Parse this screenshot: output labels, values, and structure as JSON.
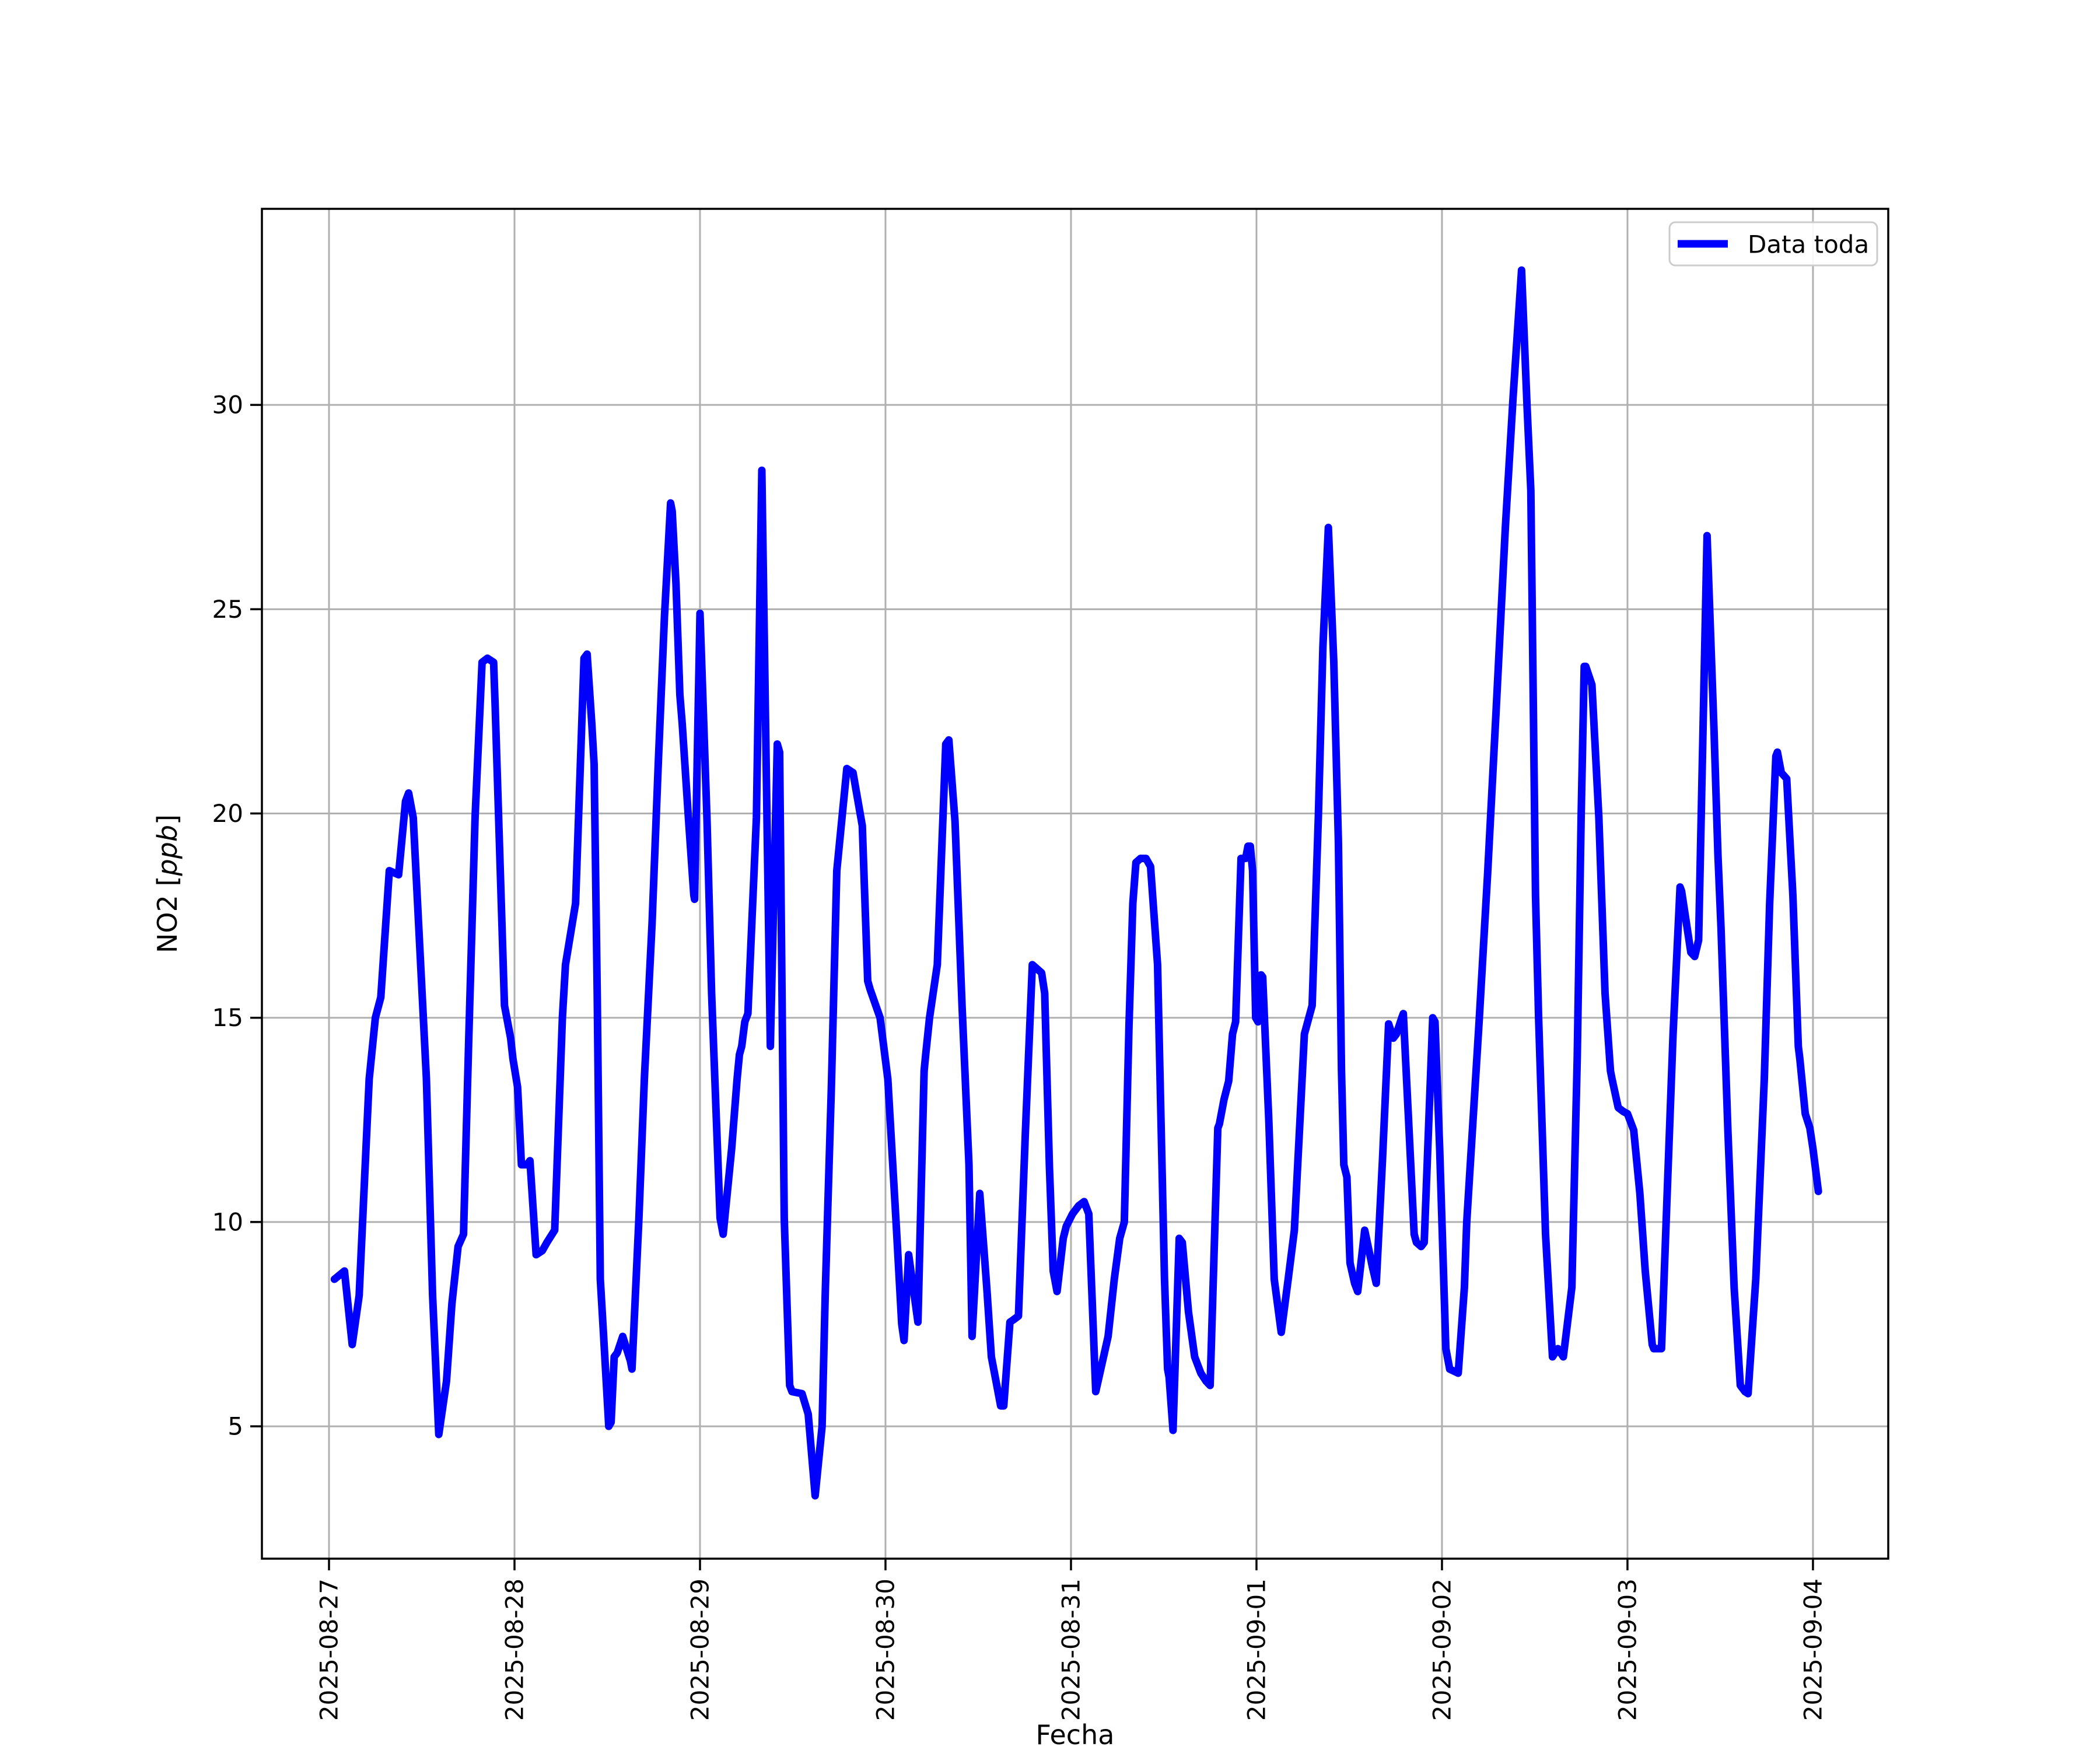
{
  "chart_data": {
    "type": "line",
    "title": "",
    "xlabel": "Fecha",
    "ylabel": "NO2 [ppb]",
    "ylabel_prefix": "NO2 [",
    "ylabel_unit": "ppb",
    "ylabel_suffix": "]",
    "grid": true,
    "legend_position": "upper right",
    "x_unit": "hours since 2025-08-27 00:00",
    "xlim_hours": [
      -8.68,
      201.74
    ],
    "ylim": [
      1.76,
      34.8
    ],
    "y_ticks": [
      5,
      10,
      15,
      20,
      25,
      30
    ],
    "x_tick_hours": [
      0,
      24,
      48,
      72,
      96,
      120,
      144,
      168,
      192
    ],
    "x_tick_labels": [
      "2025-08-27",
      "2025-08-28",
      "2025-08-29",
      "2025-08-30",
      "2025-08-31",
      "2025-09-01",
      "2025-09-02",
      "2025-09-03",
      "2025-09-04"
    ],
    "series": [
      {
        "name": "Data toda",
        "color": "#0000ff",
        "points": [
          [
            0.7,
            8.6
          ],
          [
            2.0,
            8.8
          ],
          [
            3.0,
            7.0
          ],
          [
            3.9,
            8.2
          ],
          [
            5.2,
            13.5
          ],
          [
            6.0,
            15.0
          ],
          [
            6.7,
            15.5
          ],
          [
            7.8,
            18.6
          ],
          [
            9.0,
            18.5
          ],
          [
            9.9,
            20.3
          ],
          [
            10.3,
            20.5
          ],
          [
            10.9,
            19.9
          ],
          [
            12.6,
            13.5
          ],
          [
            13.4,
            8.2
          ],
          [
            14.2,
            4.8
          ],
          [
            15.2,
            6.1
          ],
          [
            15.9,
            8.0
          ],
          [
            16.7,
            9.4
          ],
          [
            17.4,
            9.7
          ],
          [
            18.1,
            14.6
          ],
          [
            18.9,
            19.9
          ],
          [
            19.8,
            23.7
          ],
          [
            20.5,
            23.8
          ],
          [
            21.3,
            23.7
          ],
          [
            21.5,
            22.6
          ],
          [
            22.7,
            15.3
          ],
          [
            23.5,
            14.5
          ],
          [
            23.8,
            14.0
          ],
          [
            24.4,
            13.3
          ],
          [
            24.9,
            11.4
          ],
          [
            25.6,
            11.4
          ],
          [
            26.0,
            11.5
          ],
          [
            26.8,
            9.2
          ],
          [
            27.6,
            9.3
          ],
          [
            28.2,
            9.5
          ],
          [
            29.2,
            9.8
          ],
          [
            30.2,
            15.0
          ],
          [
            30.6,
            16.3
          ],
          [
            31.9,
            17.8
          ],
          [
            33.0,
            23.8
          ],
          [
            33.4,
            23.9
          ],
          [
            34.0,
            22.2
          ],
          [
            34.3,
            21.2
          ],
          [
            34.7,
            15.6
          ],
          [
            35.1,
            8.6
          ],
          [
            35.5,
            7.3
          ],
          [
            36.2,
            5.0
          ],
          [
            36.5,
            5.1
          ],
          [
            36.9,
            6.7
          ],
          [
            37.3,
            6.8
          ],
          [
            38.0,
            7.2
          ],
          [
            39.0,
            6.6
          ],
          [
            39.2,
            6.4
          ],
          [
            40.1,
            10.1
          ],
          [
            40.8,
            13.5
          ],
          [
            41.8,
            17.3
          ],
          [
            42.6,
            21.2
          ],
          [
            43.4,
            24.8
          ],
          [
            44.2,
            27.6
          ],
          [
            44.4,
            27.4
          ],
          [
            44.9,
            25.6
          ],
          [
            45.4,
            22.9
          ],
          [
            45.7,
            22.2
          ],
          [
            46.5,
            19.9
          ],
          [
            47.2,
            18.0
          ],
          [
            47.3,
            17.9
          ],
          [
            48.0,
            24.9
          ],
          [
            48.9,
            19.9
          ],
          [
            49.5,
            15.6
          ],
          [
            50.6,
            10.1
          ],
          [
            51.0,
            9.7
          ],
          [
            52.1,
            11.8
          ],
          [
            52.8,
            13.5
          ],
          [
            53.1,
            14.1
          ],
          [
            53.4,
            14.3
          ],
          [
            53.8,
            14.9
          ],
          [
            54.2,
            15.1
          ],
          [
            55.3,
            19.9
          ],
          [
            56.0,
            28.4
          ],
          [
            57.1,
            14.3
          ],
          [
            58.0,
            21.7
          ],
          [
            58.3,
            21.5
          ],
          [
            58.9,
            10.1
          ],
          [
            59.6,
            6.0
          ],
          [
            59.9,
            5.85
          ],
          [
            61.2,
            5.8
          ],
          [
            62.0,
            5.3
          ],
          [
            62.9,
            3.3
          ],
          [
            63.8,
            5.0
          ],
          [
            64.2,
            8.2
          ],
          [
            65.0,
            13.3
          ],
          [
            65.7,
            18.6
          ],
          [
            67.0,
            21.1
          ],
          [
            67.8,
            21.0
          ],
          [
            69.0,
            19.7
          ],
          [
            69.7,
            15.9
          ],
          [
            70.0,
            15.7
          ],
          [
            71.3,
            15.0
          ],
          [
            72.3,
            13.5
          ],
          [
            73.4,
            9.9
          ],
          [
            74.1,
            7.5
          ],
          [
            74.4,
            7.1
          ],
          [
            75.0,
            9.2
          ],
          [
            76.2,
            7.55
          ],
          [
            77.0,
            13.7
          ],
          [
            77.2,
            14.1
          ],
          [
            77.7,
            15.0
          ],
          [
            78.7,
            16.3
          ],
          [
            79.8,
            21.7
          ],
          [
            80.2,
            21.8
          ],
          [
            81.0,
            19.8
          ],
          [
            81.9,
            15.3
          ],
          [
            82.8,
            11.4
          ],
          [
            83.2,
            7.2
          ],
          [
            84.2,
            10.7
          ],
          [
            85.1,
            8.4
          ],
          [
            85.7,
            6.7
          ],
          [
            86.3,
            6.1
          ],
          [
            86.9,
            5.5
          ],
          [
            87.3,
            5.5
          ],
          [
            88.1,
            7.55
          ],
          [
            88.5,
            7.6
          ],
          [
            89.2,
            7.7
          ],
          [
            90.1,
            12.2
          ],
          [
            91.0,
            16.3
          ],
          [
            92.2,
            16.1
          ],
          [
            92.6,
            15.6
          ],
          [
            93.2,
            11.4
          ],
          [
            93.7,
            8.8
          ],
          [
            94.2,
            8.3
          ],
          [
            95.0,
            9.6
          ],
          [
            95.4,
            9.9
          ],
          [
            96.2,
            10.2
          ],
          [
            97.0,
            10.4
          ],
          [
            97.7,
            10.5
          ],
          [
            98.3,
            10.2
          ],
          [
            99.2,
            5.85
          ],
          [
            100.8,
            7.2
          ],
          [
            101.6,
            8.6
          ],
          [
            102.3,
            9.6
          ],
          [
            102.9,
            10.0
          ],
          [
            103.5,
            14.8
          ],
          [
            104.0,
            17.8
          ],
          [
            104.4,
            18.8
          ],
          [
            105.0,
            18.9
          ],
          [
            105.7,
            18.9
          ],
          [
            106.3,
            18.7
          ],
          [
            107.2,
            16.3
          ],
          [
            107.4,
            14.6
          ],
          [
            108.1,
            8.6
          ],
          [
            108.5,
            6.4
          ],
          [
            108.7,
            6.2
          ],
          [
            109.2,
            4.9
          ],
          [
            110.0,
            9.6
          ],
          [
            110.4,
            9.5
          ],
          [
            111.2,
            7.8
          ],
          [
            112.0,
            6.7
          ],
          [
            112.8,
            6.3
          ],
          [
            113.5,
            6.1
          ],
          [
            114.0,
            6.0
          ],
          [
            115.0,
            12.3
          ],
          [
            115.2,
            12.4
          ],
          [
            115.8,
            13.0
          ],
          [
            116.4,
            13.45
          ],
          [
            116.9,
            14.6
          ],
          [
            117.3,
            14.9
          ],
          [
            118.0,
            18.9
          ],
          [
            118.6,
            18.9
          ],
          [
            118.9,
            19.2
          ],
          [
            119.2,
            19.2
          ],
          [
            119.5,
            18.6
          ],
          [
            119.9,
            15.0
          ],
          [
            120.2,
            14.9
          ],
          [
            120.6,
            16.05
          ],
          [
            120.8,
            16.0
          ],
          [
            121.6,
            12.45
          ],
          [
            122.3,
            8.6
          ],
          [
            123.2,
            7.3
          ],
          [
            124.1,
            8.6
          ],
          [
            124.9,
            9.8
          ],
          [
            126.2,
            14.6
          ],
          [
            127.2,
            15.3
          ],
          [
            128.0,
            19.9
          ],
          [
            128.6,
            24.1
          ],
          [
            129.3,
            27.0
          ],
          [
            130.0,
            23.7
          ],
          [
            130.6,
            19.3
          ],
          [
            131.0,
            13.7
          ],
          [
            131.3,
            11.4
          ],
          [
            131.7,
            11.1
          ],
          [
            132.1,
            9.0
          ],
          [
            132.7,
            8.5
          ],
          [
            133.1,
            8.3
          ],
          [
            134.0,
            9.8
          ],
          [
            135.0,
            8.9
          ],
          [
            135.5,
            8.5
          ],
          [
            136.3,
            11.5
          ],
          [
            137.1,
            14.85
          ],
          [
            137.7,
            14.5
          ],
          [
            138.1,
            14.6
          ],
          [
            138.8,
            15.0
          ],
          [
            139.0,
            15.1
          ],
          [
            140.4,
            9.7
          ],
          [
            140.7,
            9.5
          ],
          [
            141.3,
            9.4
          ],
          [
            141.7,
            9.5
          ],
          [
            142.8,
            15.0
          ],
          [
            143.1,
            14.9
          ],
          [
            143.7,
            11.8
          ],
          [
            144.5,
            6.9
          ],
          [
            145.0,
            6.4
          ],
          [
            146.1,
            6.3
          ],
          [
            146.9,
            8.4
          ],
          [
            147.2,
            10.0
          ],
          [
            148.8,
            14.9
          ],
          [
            149.9,
            18.5
          ],
          [
            151.0,
            22.5
          ],
          [
            152.2,
            27.0
          ],
          [
            153.2,
            30.2
          ],
          [
            154.3,
            33.3
          ],
          [
            155.0,
            30.0
          ],
          [
            155.5,
            27.9
          ],
          [
            156.1,
            18.0
          ],
          [
            156.5,
            15.0
          ],
          [
            157.4,
            9.7
          ],
          [
            158.3,
            6.7
          ],
          [
            159.0,
            6.9
          ],
          [
            159.7,
            6.7
          ],
          [
            160.8,
            8.4
          ],
          [
            161.5,
            14.0
          ],
          [
            162.0,
            19.9
          ],
          [
            162.4,
            23.6
          ],
          [
            162.6,
            23.6
          ],
          [
            163.4,
            23.15
          ],
          [
            164.3,
            19.9
          ],
          [
            165.1,
            15.6
          ],
          [
            165.8,
            13.7
          ],
          [
            166.0,
            13.5
          ],
          [
            166.8,
            12.8
          ],
          [
            167.5,
            12.7
          ],
          [
            168.0,
            12.65
          ],
          [
            168.8,
            12.25
          ],
          [
            169.6,
            10.7
          ],
          [
            170.3,
            8.8
          ],
          [
            171.2,
            7.0
          ],
          [
            171.4,
            6.9
          ],
          [
            172.4,
            6.9
          ],
          [
            173.1,
            10.5
          ],
          [
            173.9,
            14.6
          ],
          [
            174.8,
            18.2
          ],
          [
            175.0,
            18.1
          ],
          [
            176.2,
            16.6
          ],
          [
            176.7,
            16.5
          ],
          [
            177.2,
            16.9
          ],
          [
            178.3,
            26.8
          ],
          [
            179.2,
            22.0
          ],
          [
            179.7,
            19.0
          ],
          [
            180.1,
            17.2
          ],
          [
            181.0,
            12.2
          ],
          [
            181.8,
            8.4
          ],
          [
            182.6,
            6.0
          ],
          [
            183.2,
            5.85
          ],
          [
            183.6,
            5.8
          ],
          [
            184.6,
            8.6
          ],
          [
            185.7,
            13.5
          ],
          [
            186.4,
            17.8
          ],
          [
            187.2,
            21.4
          ],
          [
            187.4,
            21.5
          ],
          [
            187.9,
            21.0
          ],
          [
            188.6,
            20.85
          ],
          [
            189.4,
            18.0
          ],
          [
            190.1,
            14.3
          ],
          [
            190.3,
            14.0
          ],
          [
            191.0,
            12.65
          ],
          [
            191.6,
            12.3
          ],
          [
            192.0,
            11.8
          ],
          [
            192.7,
            10.75
          ]
        ]
      }
    ]
  },
  "legend": {
    "label": "Data toda"
  },
  "styles": {
    "line_color": "#0000ff",
    "grid_color": "#b0b0b0",
    "spine_color": "#000000",
    "tick_color": "#000000",
    "legend_border_color": "#cccccc",
    "background": "#ffffff"
  }
}
